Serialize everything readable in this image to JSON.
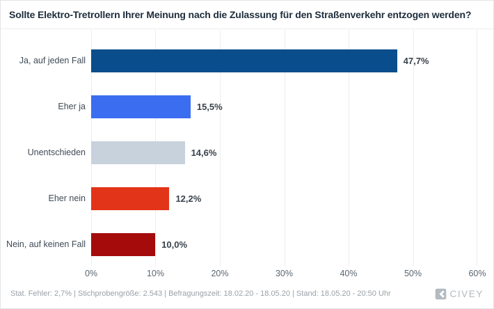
{
  "chart_data": {
    "type": "bar",
    "orientation": "horizontal",
    "title": "Sollte Elektro-Tretrollern Ihrer Meinung nach die Zulassung für den Straßenverkehr entzogen werden?",
    "categories": [
      "Ja, auf jeden Fall",
      "Eher ja",
      "Unentschieden",
      "Eher nein",
      "Nein, auf keinen Fall"
    ],
    "values": [
      47.7,
      15.5,
      14.6,
      12.2,
      10.0
    ],
    "value_labels": [
      "47,7%",
      "15,5%",
      "14,6%",
      "12,2%",
      "10,0%"
    ],
    "bar_colors": [
      "#0a4d8c",
      "#3b6df1",
      "#c8d2dc",
      "#e23418",
      "#a50b0b"
    ],
    "xlabel": "",
    "ylabel": "",
    "xlim": [
      0,
      60
    ],
    "x_ticks": [
      "0%",
      "10%",
      "20%",
      "30%",
      "40%",
      "50%",
      "60%"
    ],
    "grid": true,
    "legend": false
  },
  "footer": {
    "stats": "Stat. Fehler: 2,7% | Stichprobengröße: 2.543 | Befragungszeit: 18.02.20 - 18.05.20 | Stand: 18.05.20 - 20:50 Uhr",
    "brand": "CIVEY",
    "brand_color": "#b3bac0"
  }
}
